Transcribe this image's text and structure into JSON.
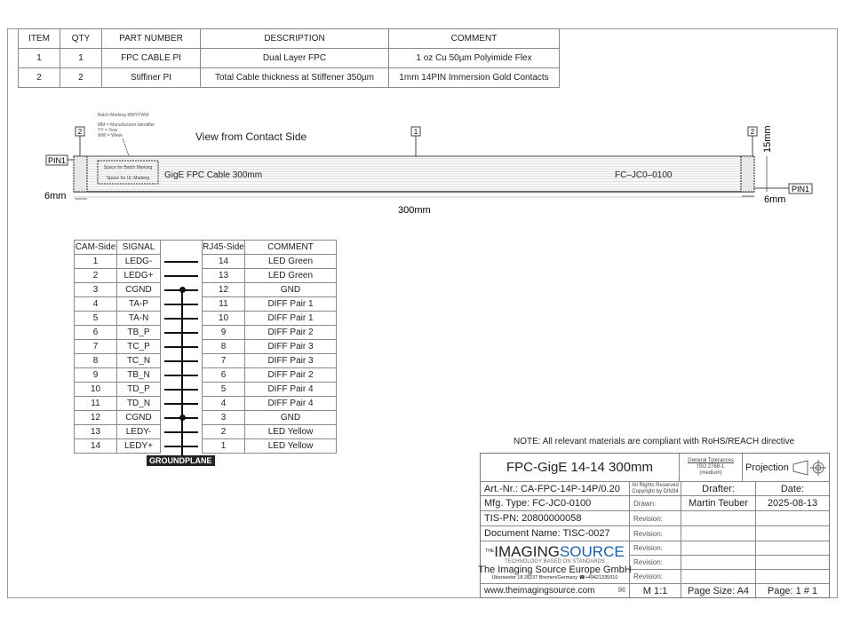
{
  "bom": {
    "headers": [
      "ITEM",
      "QTY",
      "PART NUMBER",
      "DESCRIPTION",
      "COMMENT"
    ],
    "rows": [
      [
        "1",
        "1",
        "FPC CABLE PI",
        "Dual Layer FPC",
        "1 oz Cu 50µm Polyimide Flex"
      ],
      [
        "2",
        "2",
        "Stiffiner PI",
        "Total Cable thickness at Stiffener 350µm",
        "1mm 14PIN Immersion Gold Contacts"
      ]
    ]
  },
  "drawing": {
    "view_label": "View from Contact Side",
    "batch_marking": "Batch Marking   MMYYWW",
    "legend": [
      "MM = Manufacturer Identifier",
      "YY = Year",
      "WW = Week"
    ],
    "space_batch": "Space for Batch Marking",
    "space_ul": "Space for UL Marking",
    "cable_text": "GigE  FPC  Cable  300mm",
    "cable_code": "FC–JC0–0100",
    "pin1": "PIN1",
    "callout_1": "1",
    "callout_2": "2",
    "dim_6mm": "6mm",
    "dim_300mm": "300mm",
    "dim_15mm": "15mm"
  },
  "pins": {
    "headers": [
      "CAM-Side",
      "SIGNAL",
      "",
      "RJ45-Side",
      "COMMENT"
    ],
    "rows": [
      [
        "1",
        "LEDG-",
        "14",
        "LED Green"
      ],
      [
        "2",
        "LEDG+",
        "13",
        "LED Green"
      ],
      [
        "3",
        "CGND",
        "12",
        "GND"
      ],
      [
        "4",
        "TA-P",
        "11",
        "DIFF Pair 1"
      ],
      [
        "5",
        "TA-N",
        "10",
        "DIFF Pair 1"
      ],
      [
        "6",
        "TB_P",
        "9",
        "DIFF Pair 2"
      ],
      [
        "7",
        "TC_P",
        "8",
        "DIFF Pair 3"
      ],
      [
        "8",
        "TC_N",
        "7",
        "DIFF Pair 3"
      ],
      [
        "9",
        "TB_N",
        "6",
        "DIFF Pair 2"
      ],
      [
        "10",
        "TD_P",
        "5",
        "DIFF Pair 4"
      ],
      [
        "11",
        "TD_N",
        "4",
        "DIFF Pair 4"
      ],
      [
        "12",
        "CGND",
        "3",
        "GND"
      ],
      [
        "13",
        "LEDY-",
        "2",
        "LED Yellow"
      ],
      [
        "14",
        "LEDY+",
        "1",
        "LED Yellow"
      ]
    ],
    "groundplane": "GROUNDPLANE"
  },
  "note": "NOTE: All relevant materials are compliant with RoHS/REACH directive",
  "title_block": {
    "title": "FPC-GigE 14-14 300mm",
    "tol_title": "General Tolerances",
    "tol_std": "ISO 2768-1",
    "tol_class": "(medium)",
    "projection": "Projection",
    "art_nr": "Art.-Nr.: CA-FPC-14P-14P/0.20",
    "rights1": "All Rights Reserved",
    "rights2": "Copyright by DIN34",
    "drafter_label": "Drafter:",
    "date_label": "Date:",
    "mfg_type": "Mfg. Type: FC-JC0-0100",
    "drawn_label": "Drawn:",
    "drafter": "Martin Teuber",
    "date": "2025-08-13",
    "tis_pn": "TIS-PN: 20800000058",
    "doc_name": "Document Name: TISC-0027",
    "revision_label": "Revision:",
    "logo_the": "THE",
    "logo_imaging": "IMAGING",
    "logo_source": "SOURCE",
    "logo_tagline": "TECHNOLOGY BASED ON STANDARDS",
    "company": "The Imaging Source Europe GmbH",
    "address": "Überseetor 18 28237 Bremen/Germany ☎+49421335910",
    "website": "www.theimagingsource.com",
    "scale": "M 1:1",
    "page_size": "Page Size: A4",
    "page": "Page:  1 # 1"
  },
  "colors": {
    "logo_blue": "#1a5fa8"
  }
}
